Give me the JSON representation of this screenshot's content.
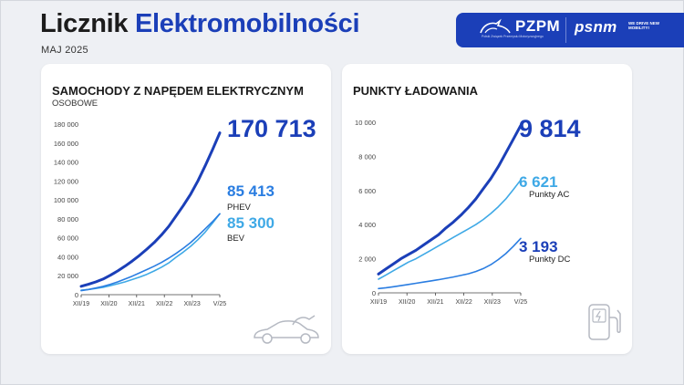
{
  "header": {
    "title_part1": "Licznik",
    "title_part2": "Elektromobilności",
    "date": "MAJ 2025",
    "pzpm_label": "PZPM",
    "pzpm_subtitle": "Polski Związek Przemysłu Motoryzacyjnego",
    "psnm_label": "psnm",
    "psnm_subtitle": "WE DRIVE NEW MOBILITY!",
    "brand_color": "#1b3fb8"
  },
  "chart_data": [
    {
      "type": "line",
      "title": "SAMOCHODY Z NAPĘDEM ELEKTRYCZNYM",
      "subtitle": "OSOBOWE",
      "x_ticks": [
        "XII/19",
        "XII/20",
        "XII/21",
        "XII/22",
        "XII/23",
        "V/25"
      ],
      "y_ticks": [
        "0",
        "20 000",
        "40 000",
        "60 000",
        "80 000",
        "100 000",
        "120 000",
        "140 000",
        "160 000",
        "180 000"
      ],
      "ylim": [
        0,
        180000
      ],
      "grid": false,
      "series": [
        {
          "name": "",
          "color": "#1b3fb8",
          "end_label": "170 713",
          "values": [
            8900,
            11000,
            13500,
            16500,
            20500,
            25000,
            30000,
            35500,
            41500,
            48000,
            55000,
            63000,
            72000,
            83000,
            94000,
            106000,
            120000,
            136000,
            153000,
            170713
          ]
        },
        {
          "name": "PHEV",
          "color": "#2a7de1",
          "end_label": "85 413",
          "values": [
            4200,
            5500,
            7000,
            8800,
            11000,
            13500,
            16500,
            19500,
            23000,
            26500,
            30000,
            34000,
            38500,
            43500,
            49000,
            55000,
            62000,
            69500,
            77000,
            85413
          ]
        },
        {
          "name": "BEV",
          "color": "#3fa9e6",
          "end_label": "85 300",
          "values": [
            4700,
            5500,
            6500,
            7700,
            9500,
            11500,
            13500,
            16000,
            18500,
            21500,
            25000,
            29000,
            33500,
            39500,
            45000,
            51000,
            58000,
            66000,
            75500,
            85300
          ]
        }
      ]
    },
    {
      "type": "line",
      "title": "PUNKTY ŁADOWANIA",
      "x_ticks": [
        "XII/19",
        "XII/20",
        "XII/21",
        "XII/22",
        "XII/23",
        "V/25"
      ],
      "y_ticks": [
        "0",
        "2 000",
        "4 000",
        "6 000",
        "8 000",
        "10 000"
      ],
      "ylim": [
        0,
        10000
      ],
      "grid": false,
      "series": [
        {
          "name": "",
          "color": "#1b3fb8",
          "end_label": "9 814",
          "values": [
            1100,
            1400,
            1700,
            2000,
            2250,
            2500,
            2800,
            3100,
            3400,
            3800,
            4150,
            4550,
            5000,
            5500,
            6100,
            6700,
            7400,
            8200,
            9000,
            9814
          ]
        },
        {
          "name": "Punkty AC",
          "color": "#3fa9e6",
          "end_label": "6 621",
          "values": [
            800,
            1050,
            1300,
            1550,
            1800,
            2000,
            2250,
            2500,
            2750,
            3000,
            3250,
            3500,
            3750,
            4000,
            4300,
            4650,
            5050,
            5500,
            6050,
            6621
          ]
        },
        {
          "name": "Punkty DC",
          "color": "#2a7de1",
          "end_label": "3 193",
          "values": [
            250,
            300,
            360,
            420,
            490,
            560,
            630,
            700,
            770,
            850,
            930,
            1020,
            1120,
            1250,
            1420,
            1650,
            1950,
            2300,
            2720,
            3193
          ]
        }
      ]
    }
  ]
}
